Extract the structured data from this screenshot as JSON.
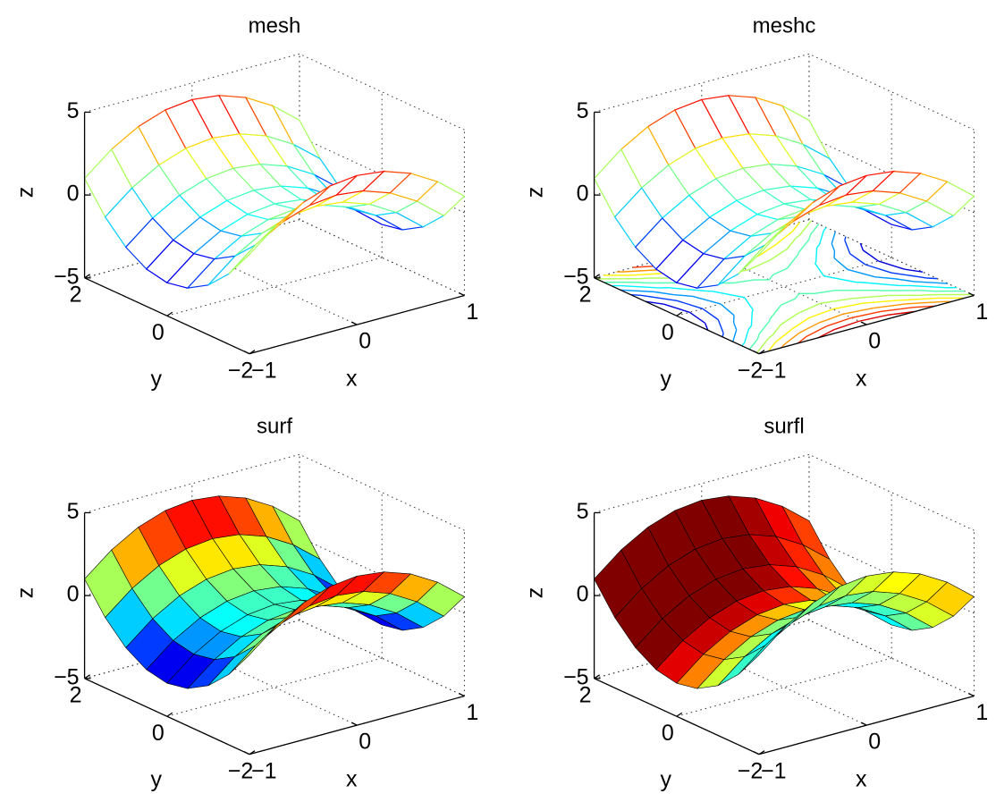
{
  "chart_data": [
    {
      "type": "mesh",
      "title": "mesh",
      "xlabel": "x",
      "ylabel": "y",
      "zlabel": "z",
      "colormap": "jet",
      "grid": true,
      "x": [
        -1,
        -0.75,
        -0.5,
        -0.25,
        0,
        0.25,
        0.5,
        0.75,
        1
      ],
      "y": [
        -2,
        -1.5,
        -1,
        -0.5,
        0,
        0.5,
        1,
        1.5,
        2
      ],
      "z": [
        [
          1,
          2.3125,
          3.25,
          3.8125,
          4,
          3.8125,
          3.25,
          2.3125,
          1
        ],
        [
          -0.75,
          0.5625,
          1.5,
          2.0625,
          2.25,
          2.0625,
          1.5,
          0.5625,
          -0.75
        ],
        [
          -2,
          -0.6875,
          0.25,
          0.8125,
          1,
          0.8125,
          0.25,
          -0.6875,
          -2
        ],
        [
          -2.75,
          -1.4375,
          -0.5,
          0.0625,
          0.25,
          0.0625,
          -0.5,
          -1.4375,
          -2.75
        ],
        [
          -3,
          -1.6875,
          -0.75,
          -0.1875,
          0,
          -0.1875,
          -0.75,
          -1.6875,
          -3
        ],
        [
          -2.75,
          -1.4375,
          -0.5,
          0.0625,
          0.25,
          0.0625,
          -0.5,
          -1.4375,
          -2.75
        ],
        [
          -2,
          -0.6875,
          0.25,
          0.8125,
          1,
          0.8125,
          0.25,
          -0.6875,
          -2
        ],
        [
          -0.75,
          0.5625,
          1.5,
          2.0625,
          2.25,
          2.0625,
          1.5,
          0.5625,
          -0.75
        ],
        [
          1,
          2.3125,
          3.25,
          3.8125,
          4,
          3.8125,
          3.25,
          2.3125,
          1
        ]
      ],
      "xlim": [
        -1,
        1
      ],
      "ylim": [
        -2,
        2
      ],
      "zlim": [
        -5,
        5
      ],
      "xticks": [
        {
          "value": -1,
          "label": "−1"
        },
        0,
        1
      ],
      "yticks": [
        {
          "value": -2,
          "label": "−2"
        },
        0,
        2
      ],
      "zticks": [
        {
          "value": -5,
          "label": "−5"
        },
        0,
        5
      ]
    },
    {
      "type": "meshc",
      "title": "meshc",
      "xlabel": "x",
      "ylabel": "y",
      "zlabel": "z",
      "colormap": "jet",
      "grid": true,
      "x": [
        -1,
        -0.75,
        -0.5,
        -0.25,
        0,
        0.25,
        0.5,
        0.75,
        1
      ],
      "y": [
        -2,
        -1.5,
        -1,
        -0.5,
        0,
        0.5,
        1,
        1.5,
        2
      ],
      "z": [
        [
          1,
          2.3125,
          3.25,
          3.8125,
          4,
          3.8125,
          3.25,
          2.3125,
          1
        ],
        [
          -0.75,
          0.5625,
          1.5,
          2.0625,
          2.25,
          2.0625,
          1.5,
          0.5625,
          -0.75
        ],
        [
          -2,
          -0.6875,
          0.25,
          0.8125,
          1,
          0.8125,
          0.25,
          -0.6875,
          -2
        ],
        [
          -2.75,
          -1.4375,
          -0.5,
          0.0625,
          0.25,
          0.0625,
          -0.5,
          -1.4375,
          -2.75
        ],
        [
          -3,
          -1.6875,
          -0.75,
          -0.1875,
          0,
          -0.1875,
          -0.75,
          -1.6875,
          -3
        ],
        [
          -2.75,
          -1.4375,
          -0.5,
          0.0625,
          0.25,
          0.0625,
          -0.5,
          -1.4375,
          -2.75
        ],
        [
          -2,
          -0.6875,
          0.25,
          0.8125,
          1,
          0.8125,
          0.25,
          -0.6875,
          -2
        ],
        [
          -0.75,
          0.5625,
          1.5,
          2.0625,
          2.25,
          2.0625,
          1.5,
          0.5625,
          -0.75
        ],
        [
          1,
          2.3125,
          3.25,
          3.8125,
          4,
          3.8125,
          3.25,
          2.3125,
          1
        ]
      ],
      "xlim": [
        -1,
        1
      ],
      "ylim": [
        -2,
        2
      ],
      "zlim": [
        -5,
        5
      ],
      "xticks": [
        {
          "value": -1,
          "label": "−1"
        },
        0,
        1
      ],
      "yticks": [
        {
          "value": -2,
          "label": "−2"
        },
        0,
        2
      ],
      "zticks": [
        {
          "value": -5,
          "label": "−5"
        },
        0,
        5
      ]
    },
    {
      "type": "surf",
      "title": "surf",
      "xlabel": "x",
      "ylabel": "y",
      "zlabel": "z",
      "colormap": "jet",
      "grid": true,
      "x": [
        -1,
        -0.75,
        -0.5,
        -0.25,
        0,
        0.25,
        0.5,
        0.75,
        1
      ],
      "y": [
        -2,
        -1.5,
        -1,
        -0.5,
        0,
        0.5,
        1,
        1.5,
        2
      ],
      "z": [
        [
          1,
          2.3125,
          3.25,
          3.8125,
          4,
          3.8125,
          3.25,
          2.3125,
          1
        ],
        [
          -0.75,
          0.5625,
          1.5,
          2.0625,
          2.25,
          2.0625,
          1.5,
          0.5625,
          -0.75
        ],
        [
          -2,
          -0.6875,
          0.25,
          0.8125,
          1,
          0.8125,
          0.25,
          -0.6875,
          -2
        ],
        [
          -2.75,
          -1.4375,
          -0.5,
          0.0625,
          0.25,
          0.0625,
          -0.5,
          -1.4375,
          -2.75
        ],
        [
          -3,
          -1.6875,
          -0.75,
          -0.1875,
          0,
          -0.1875,
          -0.75,
          -1.6875,
          -3
        ],
        [
          -2.75,
          -1.4375,
          -0.5,
          0.0625,
          0.25,
          0.0625,
          -0.5,
          -1.4375,
          -2.75
        ],
        [
          -2,
          -0.6875,
          0.25,
          0.8125,
          1,
          0.8125,
          0.25,
          -0.6875,
          -2
        ],
        [
          -0.75,
          0.5625,
          1.5,
          2.0625,
          2.25,
          2.0625,
          1.5,
          0.5625,
          -0.75
        ],
        [
          1,
          2.3125,
          3.25,
          3.8125,
          4,
          3.8125,
          3.25,
          2.3125,
          1
        ]
      ],
      "xlim": [
        -1,
        1
      ],
      "ylim": [
        -2,
        2
      ],
      "zlim": [
        -5,
        5
      ],
      "xticks": [
        {
          "value": -1,
          "label": "−1"
        },
        0,
        1
      ],
      "yticks": [
        {
          "value": -2,
          "label": "−2"
        },
        0,
        2
      ],
      "zticks": [
        {
          "value": -5,
          "label": "−5"
        },
        0,
        5
      ]
    },
    {
      "type": "surfl",
      "title": "surfl",
      "xlabel": "x",
      "ylabel": "y",
      "zlabel": "z",
      "colormap": "jet",
      "grid": true,
      "x": [
        -1,
        -0.75,
        -0.5,
        -0.25,
        0,
        0.25,
        0.5,
        0.75,
        1
      ],
      "y": [
        -2,
        -1.5,
        -1,
        -0.5,
        0,
        0.5,
        1,
        1.5,
        2
      ],
      "z": [
        [
          1,
          2.3125,
          3.25,
          3.8125,
          4,
          3.8125,
          3.25,
          2.3125,
          1
        ],
        [
          -0.75,
          0.5625,
          1.5,
          2.0625,
          2.25,
          2.0625,
          1.5,
          0.5625,
          -0.75
        ],
        [
          -2,
          -0.6875,
          0.25,
          0.8125,
          1,
          0.8125,
          0.25,
          -0.6875,
          -2
        ],
        [
          -2.75,
          -1.4375,
          -0.5,
          0.0625,
          0.25,
          0.0625,
          -0.5,
          -1.4375,
          -2.75
        ],
        [
          -3,
          -1.6875,
          -0.75,
          -0.1875,
          0,
          -0.1875,
          -0.75,
          -1.6875,
          -3
        ],
        [
          -2.75,
          -1.4375,
          -0.5,
          0.0625,
          0.25,
          0.0625,
          -0.5,
          -1.4375,
          -2.75
        ],
        [
          -2,
          -0.6875,
          0.25,
          0.8125,
          1,
          0.8125,
          0.25,
          -0.6875,
          -2
        ],
        [
          -0.75,
          0.5625,
          1.5,
          2.0625,
          2.25,
          2.0625,
          1.5,
          0.5625,
          -0.75
        ],
        [
          1,
          2.3125,
          3.25,
          3.8125,
          4,
          3.8125,
          3.25,
          2.3125,
          1
        ]
      ],
      "xlim": [
        -1,
        1
      ],
      "ylim": [
        -2,
        2
      ],
      "zlim": [
        -5,
        5
      ],
      "xticks": [
        {
          "value": -1,
          "label": "−1"
        },
        0,
        1
      ],
      "yticks": [
        {
          "value": -2,
          "label": "−2"
        },
        0,
        2
      ],
      "zticks": [
        {
          "value": -5,
          "label": "−5"
        },
        0,
        5
      ]
    }
  ]
}
